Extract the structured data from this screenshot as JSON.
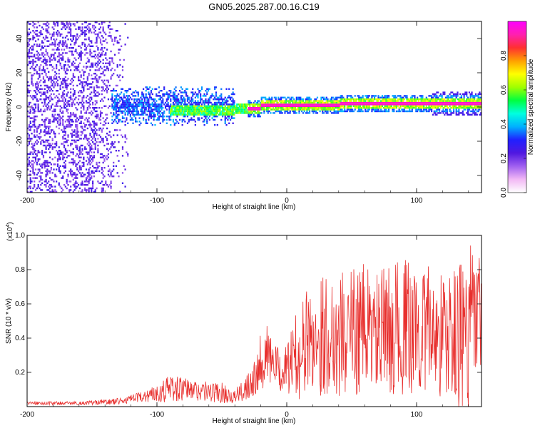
{
  "title": "GN05.2025.287.00.16.C19",
  "colors": {
    "snr_line": "#e8302e",
    "colorbar_stops": [
      "#ffffff",
      "#f2b8f5",
      "#a060f0",
      "#5018e0",
      "#2020ff",
      "#00b0ff",
      "#00ffe0",
      "#00ff40",
      "#a0ff00",
      "#ffff00",
      "#ffa000",
      "#ff3030",
      "#ff20b0",
      "#ff00ff"
    ]
  },
  "chart_data": [
    {
      "type": "heatmap",
      "name": "spectrogram",
      "xlabel": "Height of straight line (km)",
      "ylabel": "Frequency (Hz)",
      "xlim": [
        -200,
        150
      ],
      "ylim": [
        -50,
        50
      ],
      "xticks": [
        -200,
        -100,
        0,
        100
      ],
      "xtick_labels": [
        "-200",
        "-100",
        "0",
        "100"
      ],
      "yticks": [
        -40,
        -20,
        0,
        20,
        40
      ],
      "ytick_labels": [
        "-40",
        "-20",
        "0",
        "20",
        "40"
      ],
      "colorbar": {
        "label": "Normalized spectral amplitude",
        "range": [
          0,
          1
        ],
        "ticks": [
          0.0,
          0.2,
          0.4,
          0.6,
          0.8
        ],
        "tick_labels": [
          "0.0",
          "0.2",
          "0.4",
          "0.6",
          "0.8"
        ]
      },
      "description_regions": [
        {
          "x_range": [
            -200,
            -120
          ],
          "freq_range": [
            -50,
            50
          ],
          "level": 0.15
        },
        {
          "x_range": [
            -135,
            -40
          ],
          "freq_range": [
            -12,
            12
          ],
          "level": 0.25
        },
        {
          "x_range": [
            -90,
            -30
          ],
          "freq_range": [
            -3,
            3
          ],
          "level": 0.45
        },
        {
          "x_range": [
            -30,
            150
          ],
          "freq_range": [
            -2,
            2
          ],
          "level": 0.95
        }
      ]
    },
    {
      "type": "line",
      "name": "snr",
      "xlabel": "Height of straight line (km)",
      "ylabel": "SNR (10 * v/v)",
      "y_scale_label": "(x10",
      "y_scale_exp": "4",
      "y_scale_close": ")",
      "xlim": [
        -200,
        150
      ],
      "ylim": [
        0,
        1.0
      ],
      "xticks": [
        -200,
        -100,
        0,
        100
      ],
      "xtick_labels": [
        "-200",
        "-100",
        "0",
        "100"
      ],
      "yticks": [
        0.2,
        0.4,
        0.6,
        0.8,
        1.0
      ],
      "ytick_labels": [
        "0.2",
        "0.4",
        "0.6",
        "0.8",
        "1.0"
      ],
      "envelope": {
        "x": [
          -200,
          -160,
          -130,
          -115,
          -100,
          -90,
          -80,
          -65,
          -50,
          -40,
          -35,
          -30,
          -25,
          -20,
          -15,
          -10,
          -5,
          0,
          5,
          10,
          15,
          20,
          30,
          40,
          50,
          60,
          70,
          80,
          90,
          100,
          110,
          120,
          130,
          140,
          145,
          150
        ],
        "mean": [
          0.02,
          0.02,
          0.03,
          0.05,
          0.08,
          0.11,
          0.1,
          0.09,
          0.08,
          0.06,
          0.08,
          0.14,
          0.18,
          0.28,
          0.3,
          0.25,
          0.2,
          0.22,
          0.28,
          0.32,
          0.38,
          0.4,
          0.42,
          0.42,
          0.44,
          0.46,
          0.43,
          0.45,
          0.47,
          0.44,
          0.45,
          0.42,
          0.4,
          0.42,
          0.5,
          0.45
        ],
        "spread": [
          0.01,
          0.01,
          0.02,
          0.03,
          0.05,
          0.09,
          0.07,
          0.06,
          0.06,
          0.04,
          0.06,
          0.1,
          0.12,
          0.18,
          0.18,
          0.14,
          0.12,
          0.14,
          0.22,
          0.28,
          0.3,
          0.34,
          0.36,
          0.38,
          0.38,
          0.38,
          0.36,
          0.38,
          0.4,
          0.38,
          0.38,
          0.38,
          0.42,
          0.5,
          0.5,
          0.4
        ]
      }
    }
  ]
}
